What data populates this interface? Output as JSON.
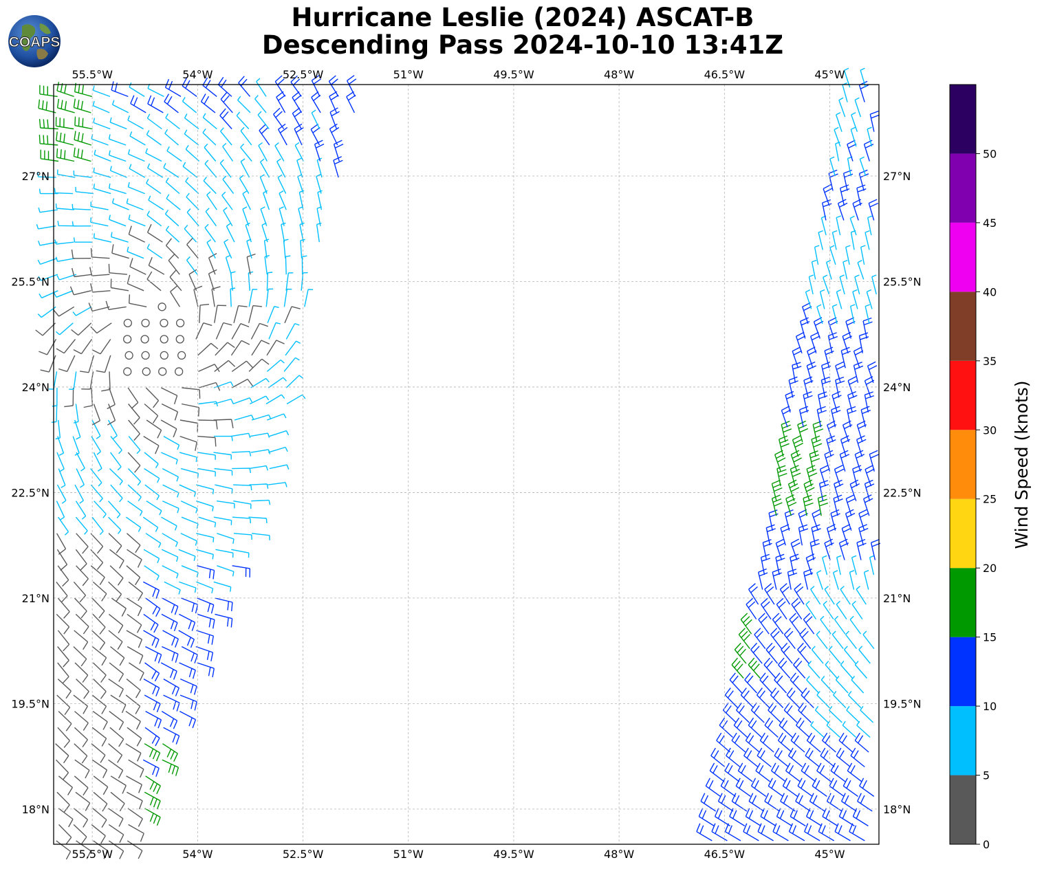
{
  "title": {
    "line1": "Hurricane Leslie (2024) ASCAT-B",
    "line2": "Descending Pass 2024-10-10 13:41Z"
  },
  "logo": {
    "text": "COAPS"
  },
  "map": {
    "lon_range": [
      -56.05,
      -44.3
    ],
    "lat_range": [
      17.5,
      28.3
    ],
    "lon_ticks": [
      -55.5,
      -54,
      -52.5,
      -51,
      -49.5,
      -48,
      -46.5,
      -45
    ],
    "lon_labels": [
      "55.5°W",
      "54°W",
      "52.5°W",
      "51°W",
      "49.5°W",
      "48°W",
      "46.5°W",
      "45°W"
    ],
    "lat_ticks": [
      18,
      19.5,
      21,
      22.5,
      24,
      25.5,
      27
    ],
    "lat_labels": [
      "18°N",
      "19.5°N",
      "21°N",
      "22.5°N",
      "24°N",
      "25.5°N",
      "27°N"
    ],
    "center": {
      "lon": -54.6,
      "lat": 24.6
    },
    "left_swath_east_edge": [
      [
        17.5,
        -54.9
      ],
      [
        19.5,
        -54.2
      ],
      [
        22.5,
        -53.0
      ],
      [
        24.0,
        -52.7
      ],
      [
        25.5,
        -52.4
      ],
      [
        28.3,
        -51.6
      ]
    ],
    "right_swath_west_edge": [
      [
        17.5,
        -46.7
      ],
      [
        20.0,
        -46.2
      ],
      [
        22.0,
        -45.8
      ],
      [
        24.0,
        -45.5
      ],
      [
        26.0,
        -45.1
      ],
      [
        28.3,
        -44.7
      ]
    ]
  },
  "colorbar": {
    "label": "Wind Speed (knots)",
    "ticks": [
      "0",
      "5",
      "10",
      "15",
      "20",
      "25",
      "30",
      "35",
      "40",
      "45",
      "50"
    ],
    "bins": [
      {
        "min": 0,
        "max": 5,
        "color": "#595959"
      },
      {
        "min": 5,
        "max": 10,
        "color": "#00bfff"
      },
      {
        "min": 10,
        "max": 15,
        "color": "#0033ff"
      },
      {
        "min": 15,
        "max": 20,
        "color": "#009900"
      },
      {
        "min": 20,
        "max": 25,
        "color": "#ffd611"
      },
      {
        "min": 25,
        "max": 30,
        "color": "#ff8c0a"
      },
      {
        "min": 30,
        "max": 35,
        "color": "#ff1111"
      },
      {
        "min": 35,
        "max": 40,
        "color": "#803d28"
      },
      {
        "min": 40,
        "max": 45,
        "color": "#f000f0"
      },
      {
        "min": 45,
        "max": 50,
        "color": "#8000b0"
      },
      {
        "min": 50,
        "max": 55,
        "color": "#2b0060"
      }
    ]
  }
}
